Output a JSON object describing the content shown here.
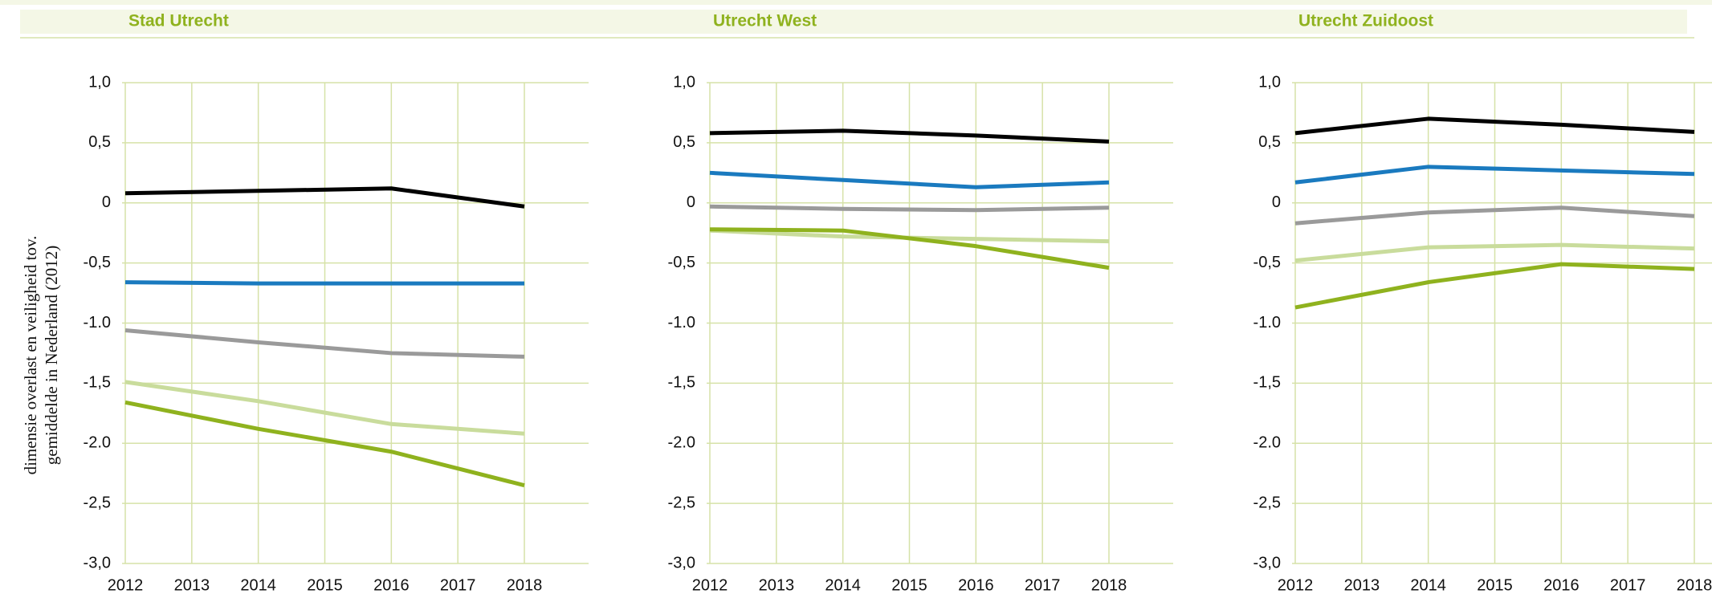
{
  "chart_data": [
    {
      "type": "line",
      "title": "Stad Utrecht",
      "y_label": [
        "dimensie overlast en veiligheid tov.",
        "gemiddelde in Nederland (2012)"
      ],
      "x": [
        2012,
        2014,
        2016,
        2018
      ],
      "xlim": [
        2012,
        2018
      ],
      "xticks": [
        2012,
        2013,
        2014,
        2015,
        2016,
        2017,
        2018
      ],
      "ylim": [
        -3,
        1
      ],
      "yticks": [
        {
          "value": 1,
          "label": "1,0"
        },
        {
          "value": 0.5,
          "label": "0,5"
        },
        0,
        {
          "value": -0.5,
          "label": "-0,5"
        },
        {
          "value": -1,
          "label": "-1.0"
        },
        {
          "value": -1.5,
          "label": "-1,5"
        },
        {
          "value": -2,
          "label": "-2.0"
        },
        {
          "value": -2.5,
          "label": "-2,5"
        },
        {
          "value": -3,
          "label": "-3,0"
        }
      ],
      "grid": true,
      "series": [
        {
          "color": "#000000",
          "values": [
            0.08,
            0.1,
            0.12,
            -0.03
          ]
        },
        {
          "color": "#1a7abf",
          "values": [
            -0.66,
            -0.67,
            -0.67,
            -0.67
          ]
        },
        {
          "color": "#9a9a9a",
          "values": [
            -1.06,
            -1.16,
            -1.25,
            -1.28
          ]
        },
        {
          "color": "#c9dc9c",
          "values": [
            -1.49,
            -1.65,
            -1.84,
            -1.92
          ]
        },
        {
          "color": "#8fb21e",
          "values": [
            -1.66,
            -1.88,
            -2.07,
            -2.35
          ]
        }
      ]
    },
    {
      "type": "line",
      "title": "Utrecht West",
      "x": [
        2012,
        2014,
        2016,
        2018
      ],
      "xlim": [
        2012,
        2018
      ],
      "xticks": [
        2012,
        2013,
        2014,
        2015,
        2016,
        2017,
        2018
      ],
      "ylim": [
        -3,
        1
      ],
      "yticks": [
        {
          "value": 1,
          "label": "1,0"
        },
        {
          "value": 0.5,
          "label": "0,5"
        },
        0,
        {
          "value": -0.5,
          "label": "-0,5"
        },
        {
          "value": -1,
          "label": "-1.0"
        },
        {
          "value": -1.5,
          "label": "-1,5"
        },
        {
          "value": -2,
          "label": "-2.0"
        },
        {
          "value": -2.5,
          "label": "-2,5"
        },
        {
          "value": -3,
          "label": "-3,0"
        }
      ],
      "grid": true,
      "series": [
        {
          "color": "#000000",
          "values": [
            0.58,
            0.6,
            0.56,
            0.51
          ]
        },
        {
          "color": "#1a7abf",
          "values": [
            0.25,
            0.19,
            0.13,
            0.17
          ]
        },
        {
          "color": "#9a9a9a",
          "values": [
            -0.03,
            -0.05,
            -0.06,
            -0.04
          ]
        },
        {
          "color": "#c9dc9c",
          "values": [
            -0.23,
            -0.28,
            -0.3,
            -0.32
          ]
        },
        {
          "color": "#8fb21e",
          "values": [
            -0.22,
            -0.23,
            -0.36,
            -0.54
          ]
        }
      ]
    },
    {
      "type": "line",
      "title": "Utrecht Zuidoost",
      "x": [
        2012,
        2014,
        2016,
        2018
      ],
      "xlim": [
        2012,
        2018
      ],
      "xticks": [
        2012,
        2013,
        2014,
        2015,
        2016,
        2017,
        2018
      ],
      "ylim": [
        -3,
        1
      ],
      "yticks": [
        {
          "value": 1,
          "label": "1,0"
        },
        {
          "value": 0.5,
          "label": "0,5"
        },
        0,
        {
          "value": -0.5,
          "label": "-0,5"
        },
        {
          "value": -1,
          "label": "-1.0"
        },
        {
          "value": -1.5,
          "label": "-1,5"
        },
        {
          "value": -2,
          "label": "-2.0"
        },
        {
          "value": -2.5,
          "label": "-2,5"
        },
        {
          "value": -3,
          "label": "-3,0"
        }
      ],
      "grid": true,
      "series": [
        {
          "color": "#000000",
          "values": [
            0.58,
            0.7,
            0.65,
            0.59
          ]
        },
        {
          "color": "#1a7abf",
          "values": [
            0.17,
            0.3,
            0.27,
            0.24
          ]
        },
        {
          "color": "#9a9a9a",
          "values": [
            -0.17,
            -0.08,
            -0.04,
            -0.11
          ]
        },
        {
          "color": "#c9dc9c",
          "values": [
            -0.48,
            -0.37,
            -0.35,
            -0.38
          ]
        },
        {
          "color": "#8fb21e",
          "values": [
            -0.87,
            -0.66,
            -0.51,
            -0.55
          ]
        }
      ]
    }
  ]
}
